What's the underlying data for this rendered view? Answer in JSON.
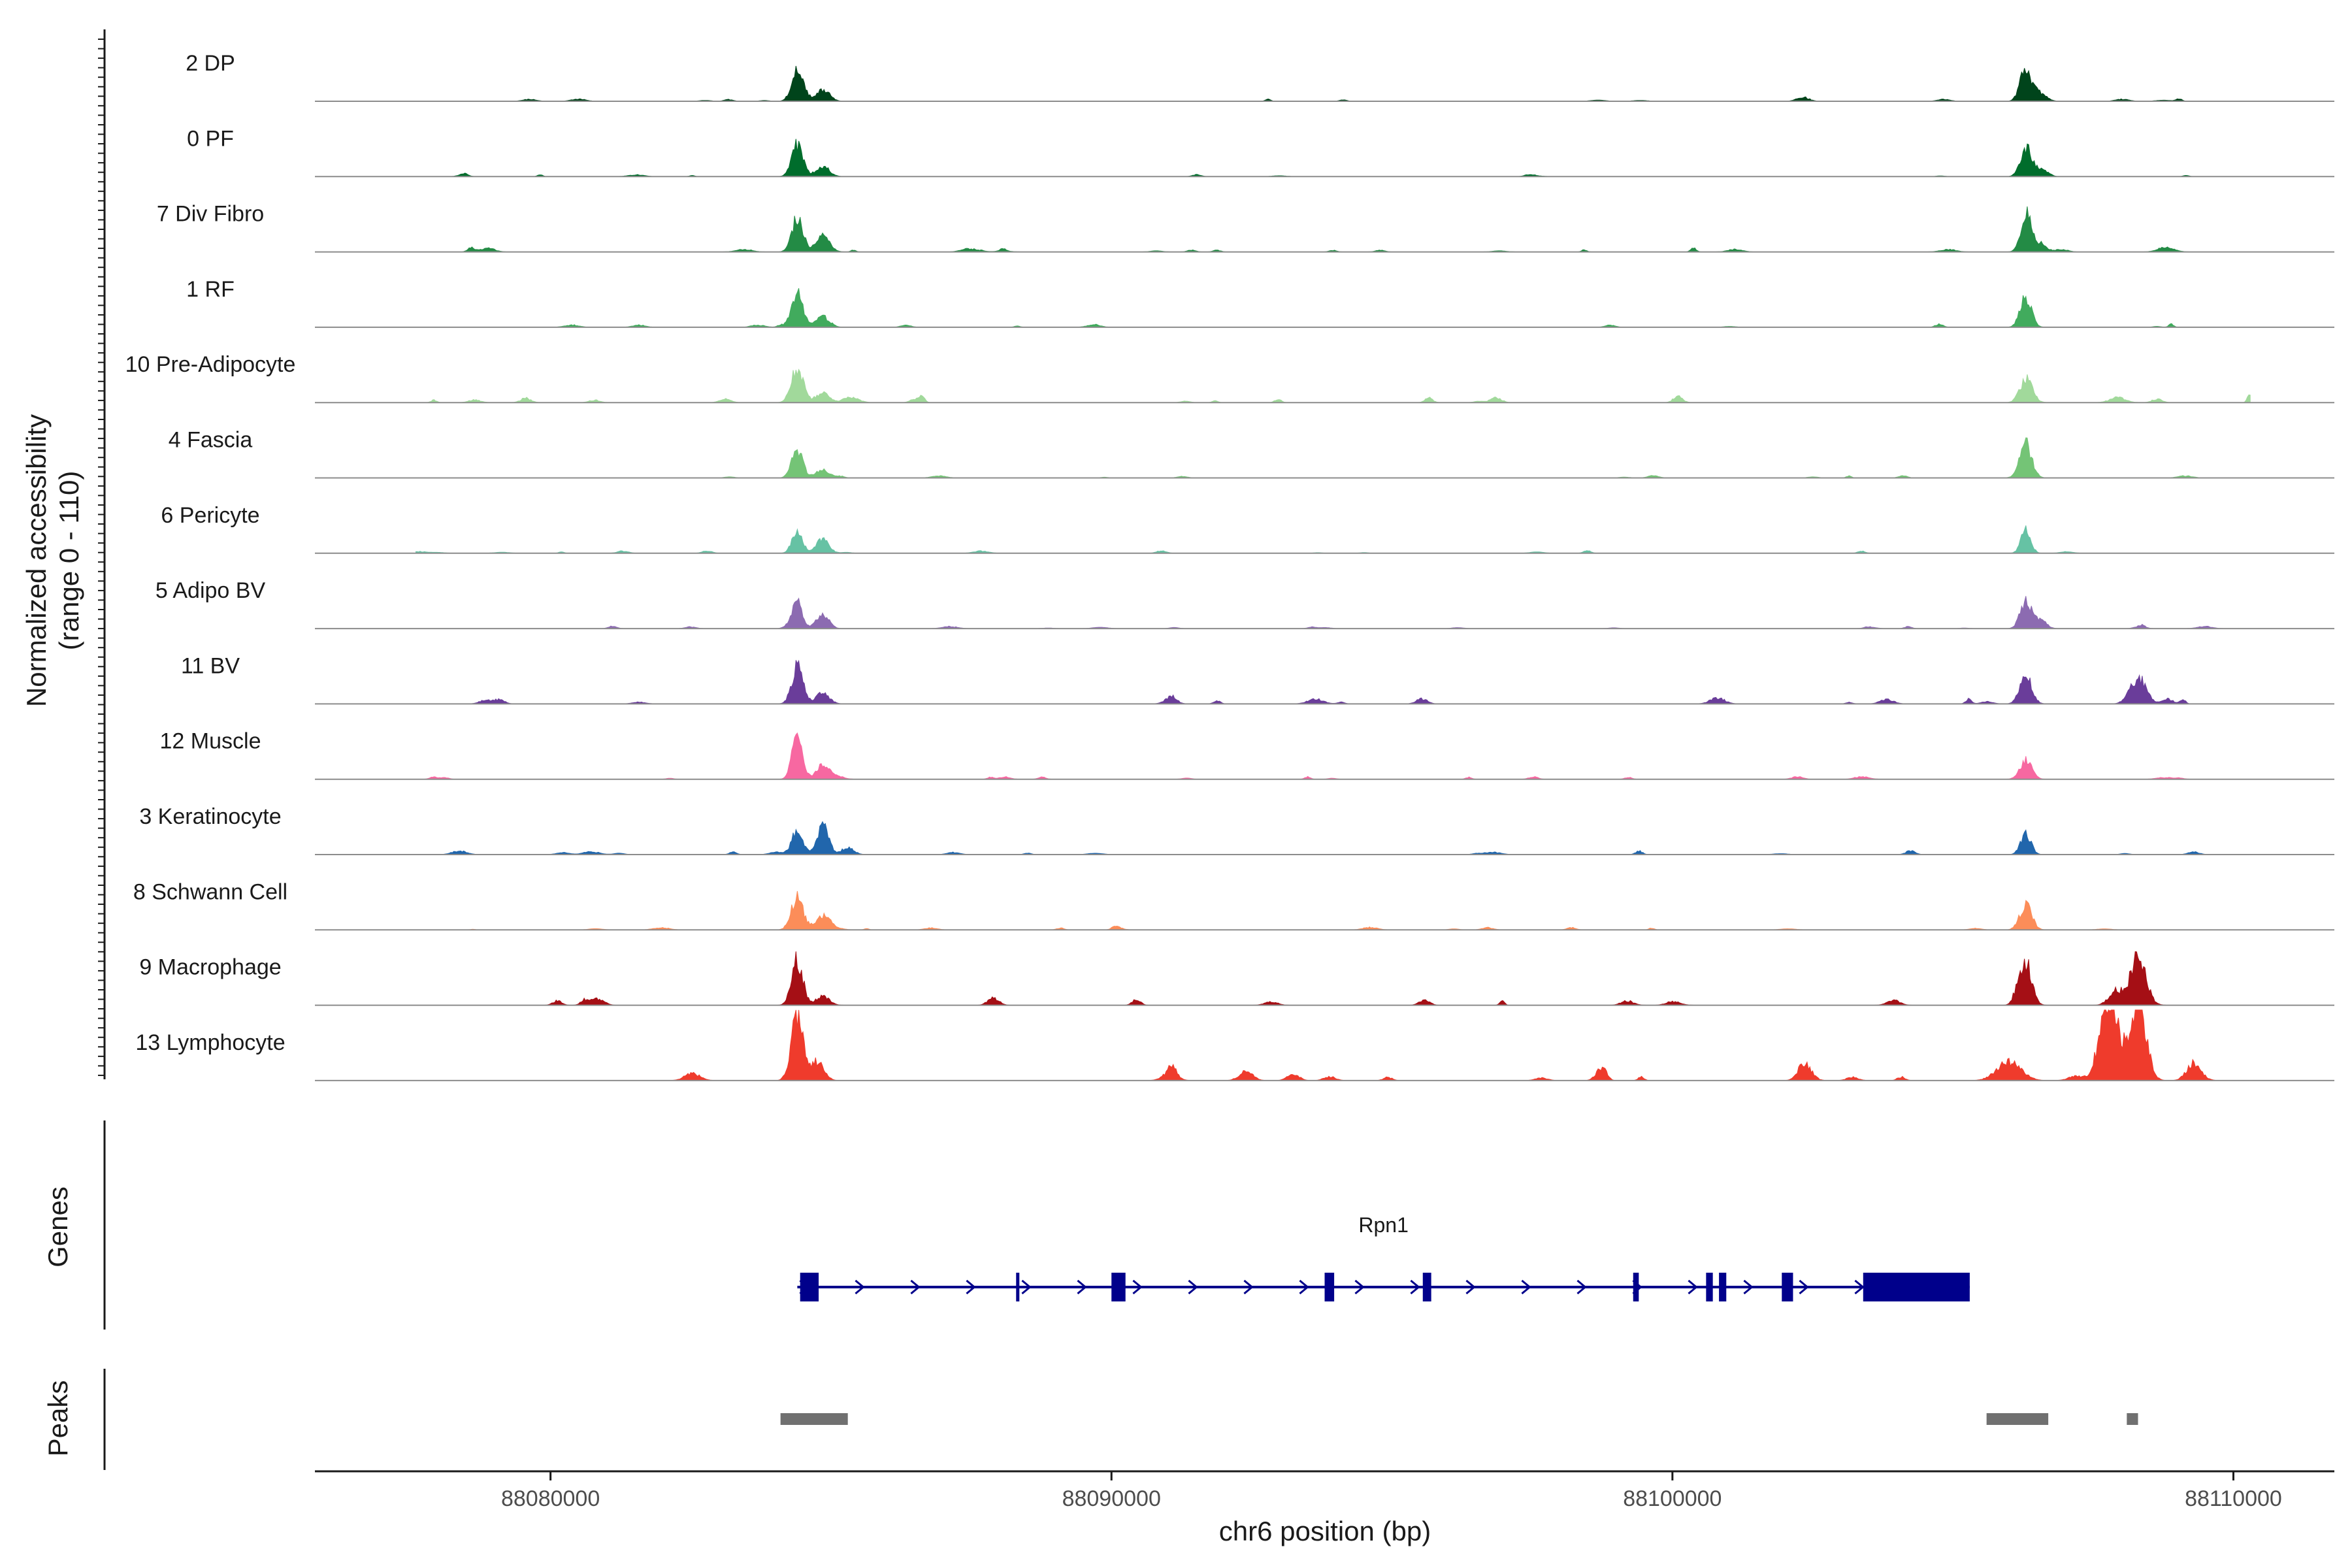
{
  "chart_data": {
    "type": "area",
    "title": "",
    "ylabel_line1": "Normalized accessibility",
    "ylabel_line2": "(range 0 - 110)",
    "ylim": [
      0,
      110
    ],
    "xlabel": "chr6 position (bp)",
    "xlim": [
      88075800,
      88111800
    ],
    "xticks": [
      88080000,
      88090000,
      88100000,
      88110000
    ],
    "xtick_labels": [
      "88080000",
      "88090000",
      "88100000",
      "88110000"
    ],
    "genes_label": "Genes",
    "peaks_label": "Peaks",
    "tracks": [
      {
        "name": "2 DP",
        "color": "#00441b",
        "peaks": [
          [
            88084400,
            70,
            140
          ],
          [
            88084850,
            25,
            170
          ],
          [
            88106300,
            68,
            140
          ],
          [
            88106550,
            18,
            160
          ]
        ],
        "noise": 4,
        "seed": 1
      },
      {
        "name": "0 PF",
        "color": "#006d2c",
        "peaks": [
          [
            88084400,
            68,
            140
          ],
          [
            88084850,
            22,
            170
          ],
          [
            88106300,
            60,
            140
          ],
          [
            88106550,
            16,
            160
          ]
        ],
        "noise": 4,
        "seed": 2
      },
      {
        "name": "7 Div Fibro",
        "color": "#238b45",
        "peaks": [
          [
            88084400,
            72,
            140
          ],
          [
            88084850,
            35,
            170
          ],
          [
            88106300,
            80,
            130
          ],
          [
            88106550,
            18,
            160
          ],
          [
            88108800,
            10,
            200
          ]
        ],
        "noise": 7,
        "seed": 3
      },
      {
        "name": "1 RF",
        "color": "#41ab5d",
        "peaks": [
          [
            88084400,
            65,
            140
          ],
          [
            88084850,
            22,
            170
          ],
          [
            88106300,
            62,
            140
          ]
        ],
        "noise": 5,
        "seed": 4
      },
      {
        "name": "10 Pre-Adipocyte",
        "color": "#a1d99b",
        "peaks": [
          [
            88084400,
            72,
            150
          ],
          [
            88084850,
            20,
            170
          ],
          [
            88106300,
            40,
            150
          ],
          [
            88110300,
            20,
            60
          ]
        ],
        "noise": 10,
        "seed": 5
      },
      {
        "name": "4 Fascia",
        "color": "#74c476",
        "peaks": [
          [
            88084400,
            58,
            140
          ],
          [
            88084850,
            18,
            160
          ],
          [
            88106300,
            70,
            150
          ]
        ],
        "noise": 4,
        "seed": 6
      },
      {
        "name": "6 Pericyte",
        "color": "#66c2a4",
        "peaks": [
          [
            88084400,
            45,
            130
          ],
          [
            88084850,
            30,
            160
          ],
          [
            88106300,
            50,
            120
          ]
        ],
        "noise": 4,
        "seed": 7
      },
      {
        "name": "5 Adipo BV",
        "color": "#8c6bb1",
        "peaks": [
          [
            88084400,
            55,
            130
          ],
          [
            88084850,
            32,
            150
          ],
          [
            88106300,
            58,
            140
          ],
          [
            88106550,
            15,
            150
          ]
        ],
        "noise": 4,
        "seed": 8
      },
      {
        "name": "11 BV",
        "color": "#6a3d9a",
        "peaks": [
          [
            88084400,
            80,
            140
          ],
          [
            88084850,
            22,
            170
          ],
          [
            88106300,
            58,
            150
          ],
          [
            88108300,
            55,
            200
          ]
        ],
        "noise": 10,
        "seed": 9
      },
      {
        "name": "12 Muscle",
        "color": "#f768a1",
        "peaks": [
          [
            88084400,
            88,
            130
          ],
          [
            88084850,
            28,
            160
          ],
          [
            88106300,
            40,
            150
          ]
        ],
        "noise": 5,
        "seed": 10
      },
      {
        "name": "3 Keratinocyte",
        "color": "#2166ac",
        "peaks": [
          [
            88084400,
            55,
            130
          ],
          [
            88084850,
            60,
            150
          ],
          [
            88085300,
            15,
            150
          ],
          [
            88106300,
            42,
            130
          ]
        ],
        "noise": 6,
        "seed": 11
      },
      {
        "name": "8 Schwann Cell",
        "color": "#fc8d59",
        "peaks": [
          [
            88084400,
            68,
            150
          ],
          [
            88084850,
            30,
            170
          ],
          [
            88106300,
            52,
            150
          ]
        ],
        "noise": 4,
        "seed": 12
      },
      {
        "name": "9 Macrophage",
        "color": "#a50f15",
        "peaks": [
          [
            88084400,
            95,
            140
          ],
          [
            88084850,
            18,
            170
          ],
          [
            88106300,
            85,
            150
          ],
          [
            88108300,
            100,
            200
          ],
          [
            88107900,
            30,
            170
          ]
        ],
        "noise": 12,
        "seed": 13
      },
      {
        "name": "13 Lymphocyte",
        "color": "#ef3b2c",
        "peaks": [
          [
            88084400,
            140,
            150
          ],
          [
            88084750,
            40,
            170
          ],
          [
            88106000,
            40,
            300
          ],
          [
            88107800,
            180,
            220
          ],
          [
            88108300,
            170,
            200
          ]
        ],
        "noise": 16,
        "seed": 14
      }
    ],
    "gene": {
      "name": "Rpn1",
      "color": "#00008b",
      "start": 88084400,
      "end": 88105300,
      "exons": [
        [
          88084450,
          88084780
        ],
        [
          88090000,
          88090250
        ],
        [
          88093800,
          88093970
        ],
        [
          88095550,
          88095700
        ],
        [
          88099300,
          88099400
        ],
        [
          88100600,
          88100720
        ],
        [
          88100830,
          88100960
        ],
        [
          88101950,
          88102150
        ],
        [
          88103400,
          88105300
        ]
      ],
      "thin_marks": [
        88088300
      ]
    },
    "peaks": [
      [
        88084100,
        88085300
      ],
      [
        88105600,
        88106700
      ],
      [
        88108100,
        88108300
      ]
    ],
    "peak_color": "#707070"
  }
}
